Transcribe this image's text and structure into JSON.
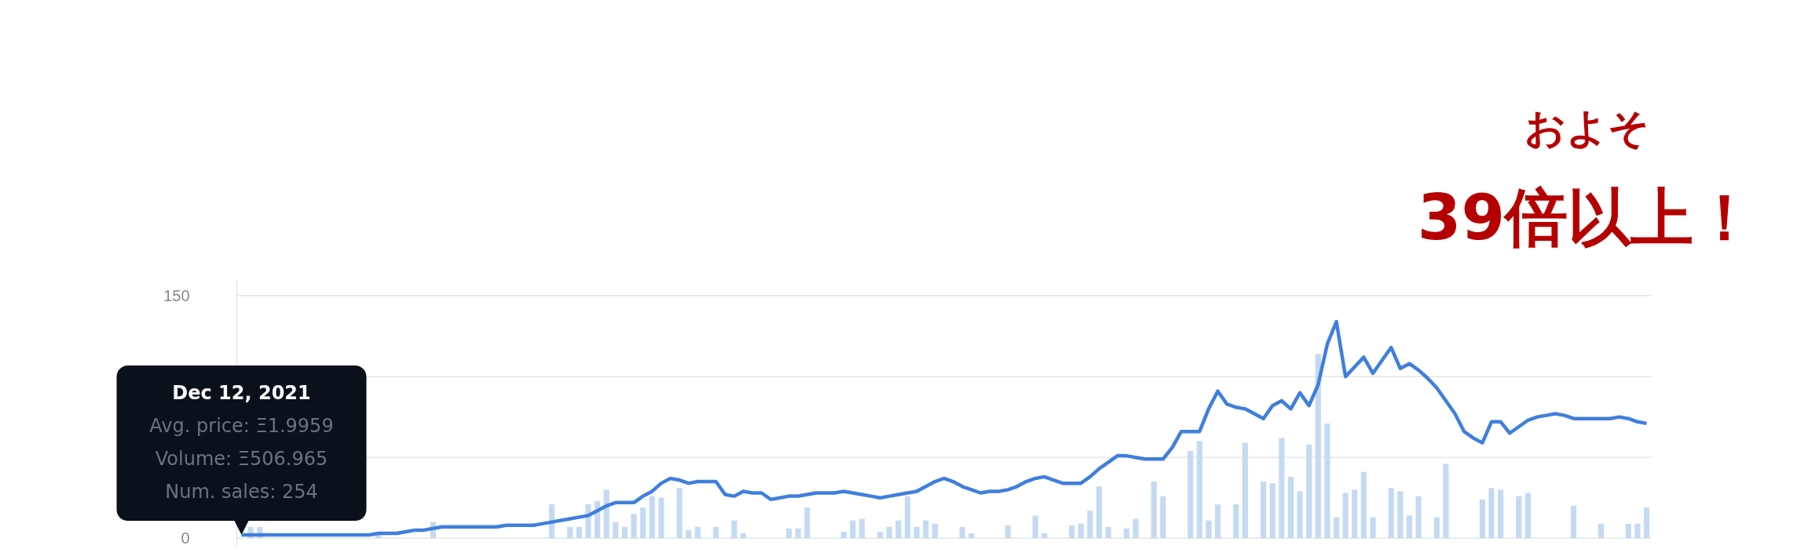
{
  "chart_data": {
    "type": "line",
    "ylim": [
      -5,
      160
    ],
    "yticks": [
      0,
      {
        "value": 50,
        "label": null
      },
      {
        "value": 100,
        "label": null
      },
      150
    ],
    "grid": "y",
    "tick_labels": "y",
    "categories": [
      null,
      null,
      null,
      null,
      null,
      null,
      null,
      null,
      null,
      null,
      null,
      null,
      null,
      null,
      null,
      null,
      null,
      null,
      null,
      null,
      null,
      null,
      null,
      null,
      null,
      null,
      null,
      null,
      null,
      null,
      null,
      null,
      null,
      null,
      null,
      null,
      null,
      null,
      null,
      null,
      null,
      null,
      null,
      null,
      null,
      null,
      null,
      null,
      null,
      null,
      null,
      null,
      null,
      null,
      null,
      null,
      null,
      null,
      null,
      null,
      null,
      null,
      null,
      null,
      null,
      null,
      null,
      null,
      null,
      null,
      null,
      null,
      null,
      null,
      null,
      null,
      null,
      null,
      null,
      null,
      null,
      null,
      null,
      null,
      null,
      null,
      null,
      null,
      null,
      null,
      null,
      null,
      null,
      null,
      null,
      null,
      null,
      null,
      null,
      null,
      null,
      null,
      null,
      null,
      null,
      null,
      null,
      null,
      null,
      null,
      null,
      null,
      null,
      null,
      null,
      null,
      null,
      null,
      null,
      null,
      null,
      null,
      null,
      null,
      null,
      null,
      null,
      null,
      null,
      null,
      null,
      null,
      null,
      null,
      null,
      null,
      null,
      null,
      null,
      null,
      null,
      null,
      null,
      null,
      null,
      null,
      null,
      null,
      null,
      null,
      null,
      null,
      null,
      null,
      null
    ],
    "series": [
      {
        "type": "bar",
        "color": "#c5daf2",
        "values": [
          null,
          7,
          7,
          null,
          null,
          null,
          null,
          null,
          null,
          null,
          null,
          null,
          null,
          null,
          null,
          3,
          null,
          null,
          null,
          null,
          null,
          10,
          null,
          null,
          null,
          null,
          null,
          null,
          null,
          null,
          null,
          null,
          null,
          null,
          21,
          null,
          7,
          7,
          21,
          23,
          30,
          10,
          7,
          15,
          19,
          26,
          25,
          null,
          31,
          5,
          7,
          null,
          7,
          null,
          11,
          3,
          null,
          null,
          null,
          null,
          6,
          6,
          19,
          null,
          null,
          null,
          4,
          11,
          12,
          null,
          4,
          7,
          11,
          26,
          7,
          11,
          9,
          null,
          null,
          7,
          3,
          null,
          null,
          null,
          8,
          null,
          null,
          14,
          3,
          null,
          null,
          8,
          9,
          17,
          32,
          7,
          null,
          6,
          12,
          null,
          35,
          26,
          null,
          null,
          54,
          60,
          11,
          21,
          null,
          21,
          59,
          null,
          35,
          34,
          62,
          38,
          29,
          58,
          114,
          71,
          13,
          28,
          30,
          41,
          13,
          null,
          31,
          29,
          14,
          26,
          null,
          13,
          46,
          null,
          null,
          null,
          24,
          31,
          30,
          null,
          26,
          28,
          null,
          null,
          null,
          null,
          20,
          null,
          null,
          9,
          null,
          null,
          9,
          9,
          19
        ]
      },
      {
        "color": "#3f7fdc",
        "values": [
          2,
          2,
          2,
          2,
          2,
          2,
          2,
          2,
          2,
          2,
          2,
          2,
          2,
          2,
          2,
          3,
          3,
          3,
          4,
          5,
          5,
          6,
          7,
          7,
          7,
          7,
          7,
          7,
          7,
          8,
          8,
          8,
          8,
          9,
          10,
          11,
          12,
          13,
          14,
          17,
          20,
          22,
          22,
          22,
          26,
          29,
          34,
          37,
          36,
          34,
          35,
          35,
          35,
          27,
          26,
          29,
          28,
          28,
          24,
          25,
          26,
          26,
          27,
          28,
          28,
          28,
          29,
          28,
          27,
          26,
          25,
          26,
          27,
          28,
          29,
          32,
          35,
          37,
          35,
          32,
          30,
          28,
          29,
          29,
          30,
          32,
          35,
          37,
          38,
          36,
          34,
          34,
          34,
          38,
          43,
          47,
          51,
          51,
          50,
          49,
          49,
          49,
          56,
          66,
          66,
          66,
          80,
          91,
          83,
          81,
          80,
          77,
          74,
          82,
          85,
          80,
          90,
          82,
          95,
          120,
          134,
          100,
          106,
          112,
          102,
          110,
          118,
          105,
          108,
          104,
          99,
          93,
          85,
          77,
          66,
          62,
          59,
          72,
          72,
          65,
          69,
          73,
          75,
          76,
          77,
          76,
          74,
          74,
          74,
          74,
          74,
          75,
          74,
          72,
          71
        ]
      }
    ],
    "annotations": [
      {
        "text": "Dec 12, 2021\nAvg. price: Ξ1.9959\nVolume: Ξ506.965\nNum. sales: 254",
        "y": 2
      },
      "およそ",
      "39倍以上！"
    ]
  }
}
